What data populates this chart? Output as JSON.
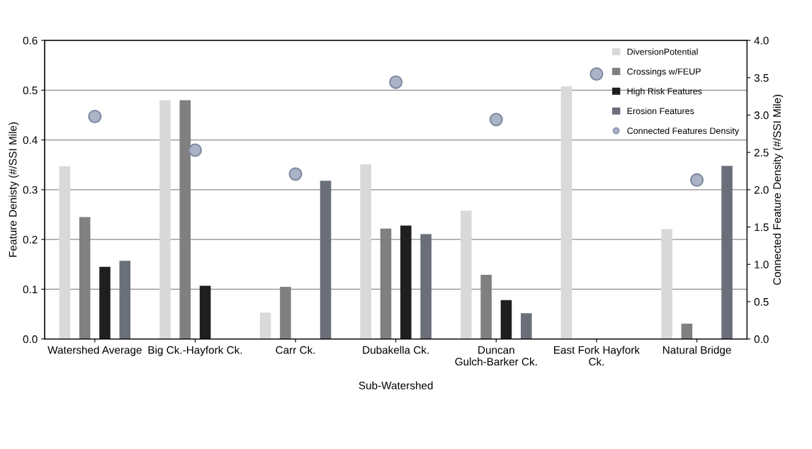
{
  "chart_data": {
    "type": "bar",
    "xlabel": "Sub-Watershed",
    "ylabel": "Feature Denisty (#/SSI Mile)",
    "y2label": "Connected Feature Density (#/SSI Mile)",
    "categories": [
      "Watershed Average",
      "Big Ck.-Hayfork Ck.",
      "Carr Ck.",
      "Dubakella Ck.",
      "Duncan Gulch-Barker Ck.",
      "East Fork Hayfork Ck.",
      "Natural Bridge"
    ],
    "series": [
      {
        "name": "DiversionPotential",
        "color": "#d9d9d9",
        "values": [
          0.347,
          0.48,
          0.053,
          0.351,
          0.258,
          0.508,
          0.221
        ]
      },
      {
        "name": "Crossings w/FEUP",
        "color": "#808080",
        "values": [
          0.245,
          0.48,
          0.105,
          0.222,
          0.129,
          null,
          0.031
        ]
      },
      {
        "name": "High Risk Features",
        "color": "#1f1f1f",
        "values": [
          0.145,
          0.107,
          null,
          0.228,
          0.078,
          null,
          null
        ]
      },
      {
        "name": "Erosion Features",
        "color": "#6b6f7a",
        "values": [
          0.157,
          null,
          0.318,
          0.211,
          0.052,
          null,
          0.348
        ]
      },
      {
        "name": "Connected Features Density",
        "type": "scatter",
        "axis": "y2",
        "color": "#aab4c6",
        "values": [
          2.98,
          2.53,
          2.21,
          3.44,
          2.94,
          3.55,
          2.13
        ]
      }
    ],
    "ylim": [
      0,
      0.6
    ],
    "yticks": [
      {
        "value": 0,
        "label": "0.0"
      },
      0.1,
      0.2,
      0.3,
      0.4,
      0.5,
      0.6
    ],
    "y2lim": [
      0,
      4
    ],
    "y2ticks": [
      {
        "value": 0,
        "label": "0.0"
      },
      {
        "value": 0.5,
        "label": "0.5"
      },
      {
        "value": 1,
        "label": "1.0"
      },
      {
        "value": 1.5,
        "label": "1.5"
      },
      {
        "value": 2,
        "label": "2.0"
      },
      {
        "value": 2.5,
        "label": "2.5"
      },
      {
        "value": 3,
        "label": "3.0"
      },
      {
        "value": 3.5,
        "label": "3.5"
      },
      {
        "value": 4,
        "label": "4.0"
      }
    ],
    "grid": "y",
    "legend": "top right",
    "marker": "circle"
  }
}
